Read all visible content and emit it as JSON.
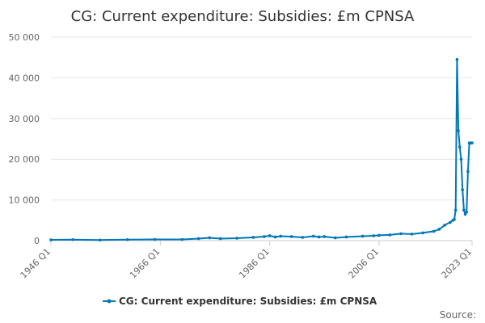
{
  "chart_data": {
    "type": "line",
    "title": "CG: Current expenditure: Subsidies: £m CPNSA",
    "xlabel": "",
    "ylabel": "",
    "ylim": [
      0,
      50000
    ],
    "y_ticks": [
      0,
      10000,
      20000,
      30000,
      40000,
      50000
    ],
    "y_tick_labels": [
      "0",
      "10 000",
      "20 000",
      "30 000",
      "40 000",
      "50 000"
    ],
    "x_range": [
      1946.0,
      2023.0
    ],
    "x_ticks": [
      1946.0,
      1966.0,
      1986.0,
      2006.0,
      2023.0
    ],
    "x_tick_labels": [
      "1946 Q1",
      "1966 Q1",
      "1986 Q1",
      "2006 Q1",
      "2023 Q1"
    ],
    "grid": "horizontal",
    "legend_position": "bottom",
    "series": [
      {
        "name": "CG: Current expenditure: Subsidies: £m CPNSA",
        "color": "#0077b6",
        "x": [
          1946.0,
          1950.0,
          1955.0,
          1960.0,
          1965.0,
          1970.0,
          1973.0,
          1975.0,
          1977.0,
          1980.0,
          1983.0,
          1985.0,
          1986.0,
          1987.0,
          1988.0,
          1990.0,
          1992.0,
          1994.0,
          1995.0,
          1996.0,
          1998.0,
          2000.0,
          2003.0,
          2005.0,
          2006.0,
          2008.0,
          2010.0,
          2012.0,
          2014.0,
          2016.0,
          2017.0,
          2018.0,
          2019.0,
          2019.5,
          2019.75,
          2020.0,
          2020.25,
          2020.5,
          2020.75,
          2021.0,
          2021.25,
          2021.5,
          2021.75,
          2022.0,
          2022.25,
          2022.5,
          2022.75,
          2023.0
        ],
        "y": [
          200,
          250,
          150,
          250,
          300,
          300,
          500,
          700,
          500,
          600,
          800,
          1000,
          1200,
          900,
          1100,
          1000,
          800,
          1100,
          900,
          1000,
          700,
          900,
          1100,
          1200,
          1300,
          1400,
          1700,
          1600,
          1900,
          2300,
          2800,
          3800,
          4500,
          5000,
          5200,
          7500,
          44500,
          27000,
          23000,
          20000,
          12500,
          7500,
          6500,
          7000,
          17000,
          24000,
          24000,
          24000
        ]
      }
    ],
    "legend_label": "CG: Current expenditure: Subsidies: £m CPNSA",
    "source_label": "Source:"
  }
}
